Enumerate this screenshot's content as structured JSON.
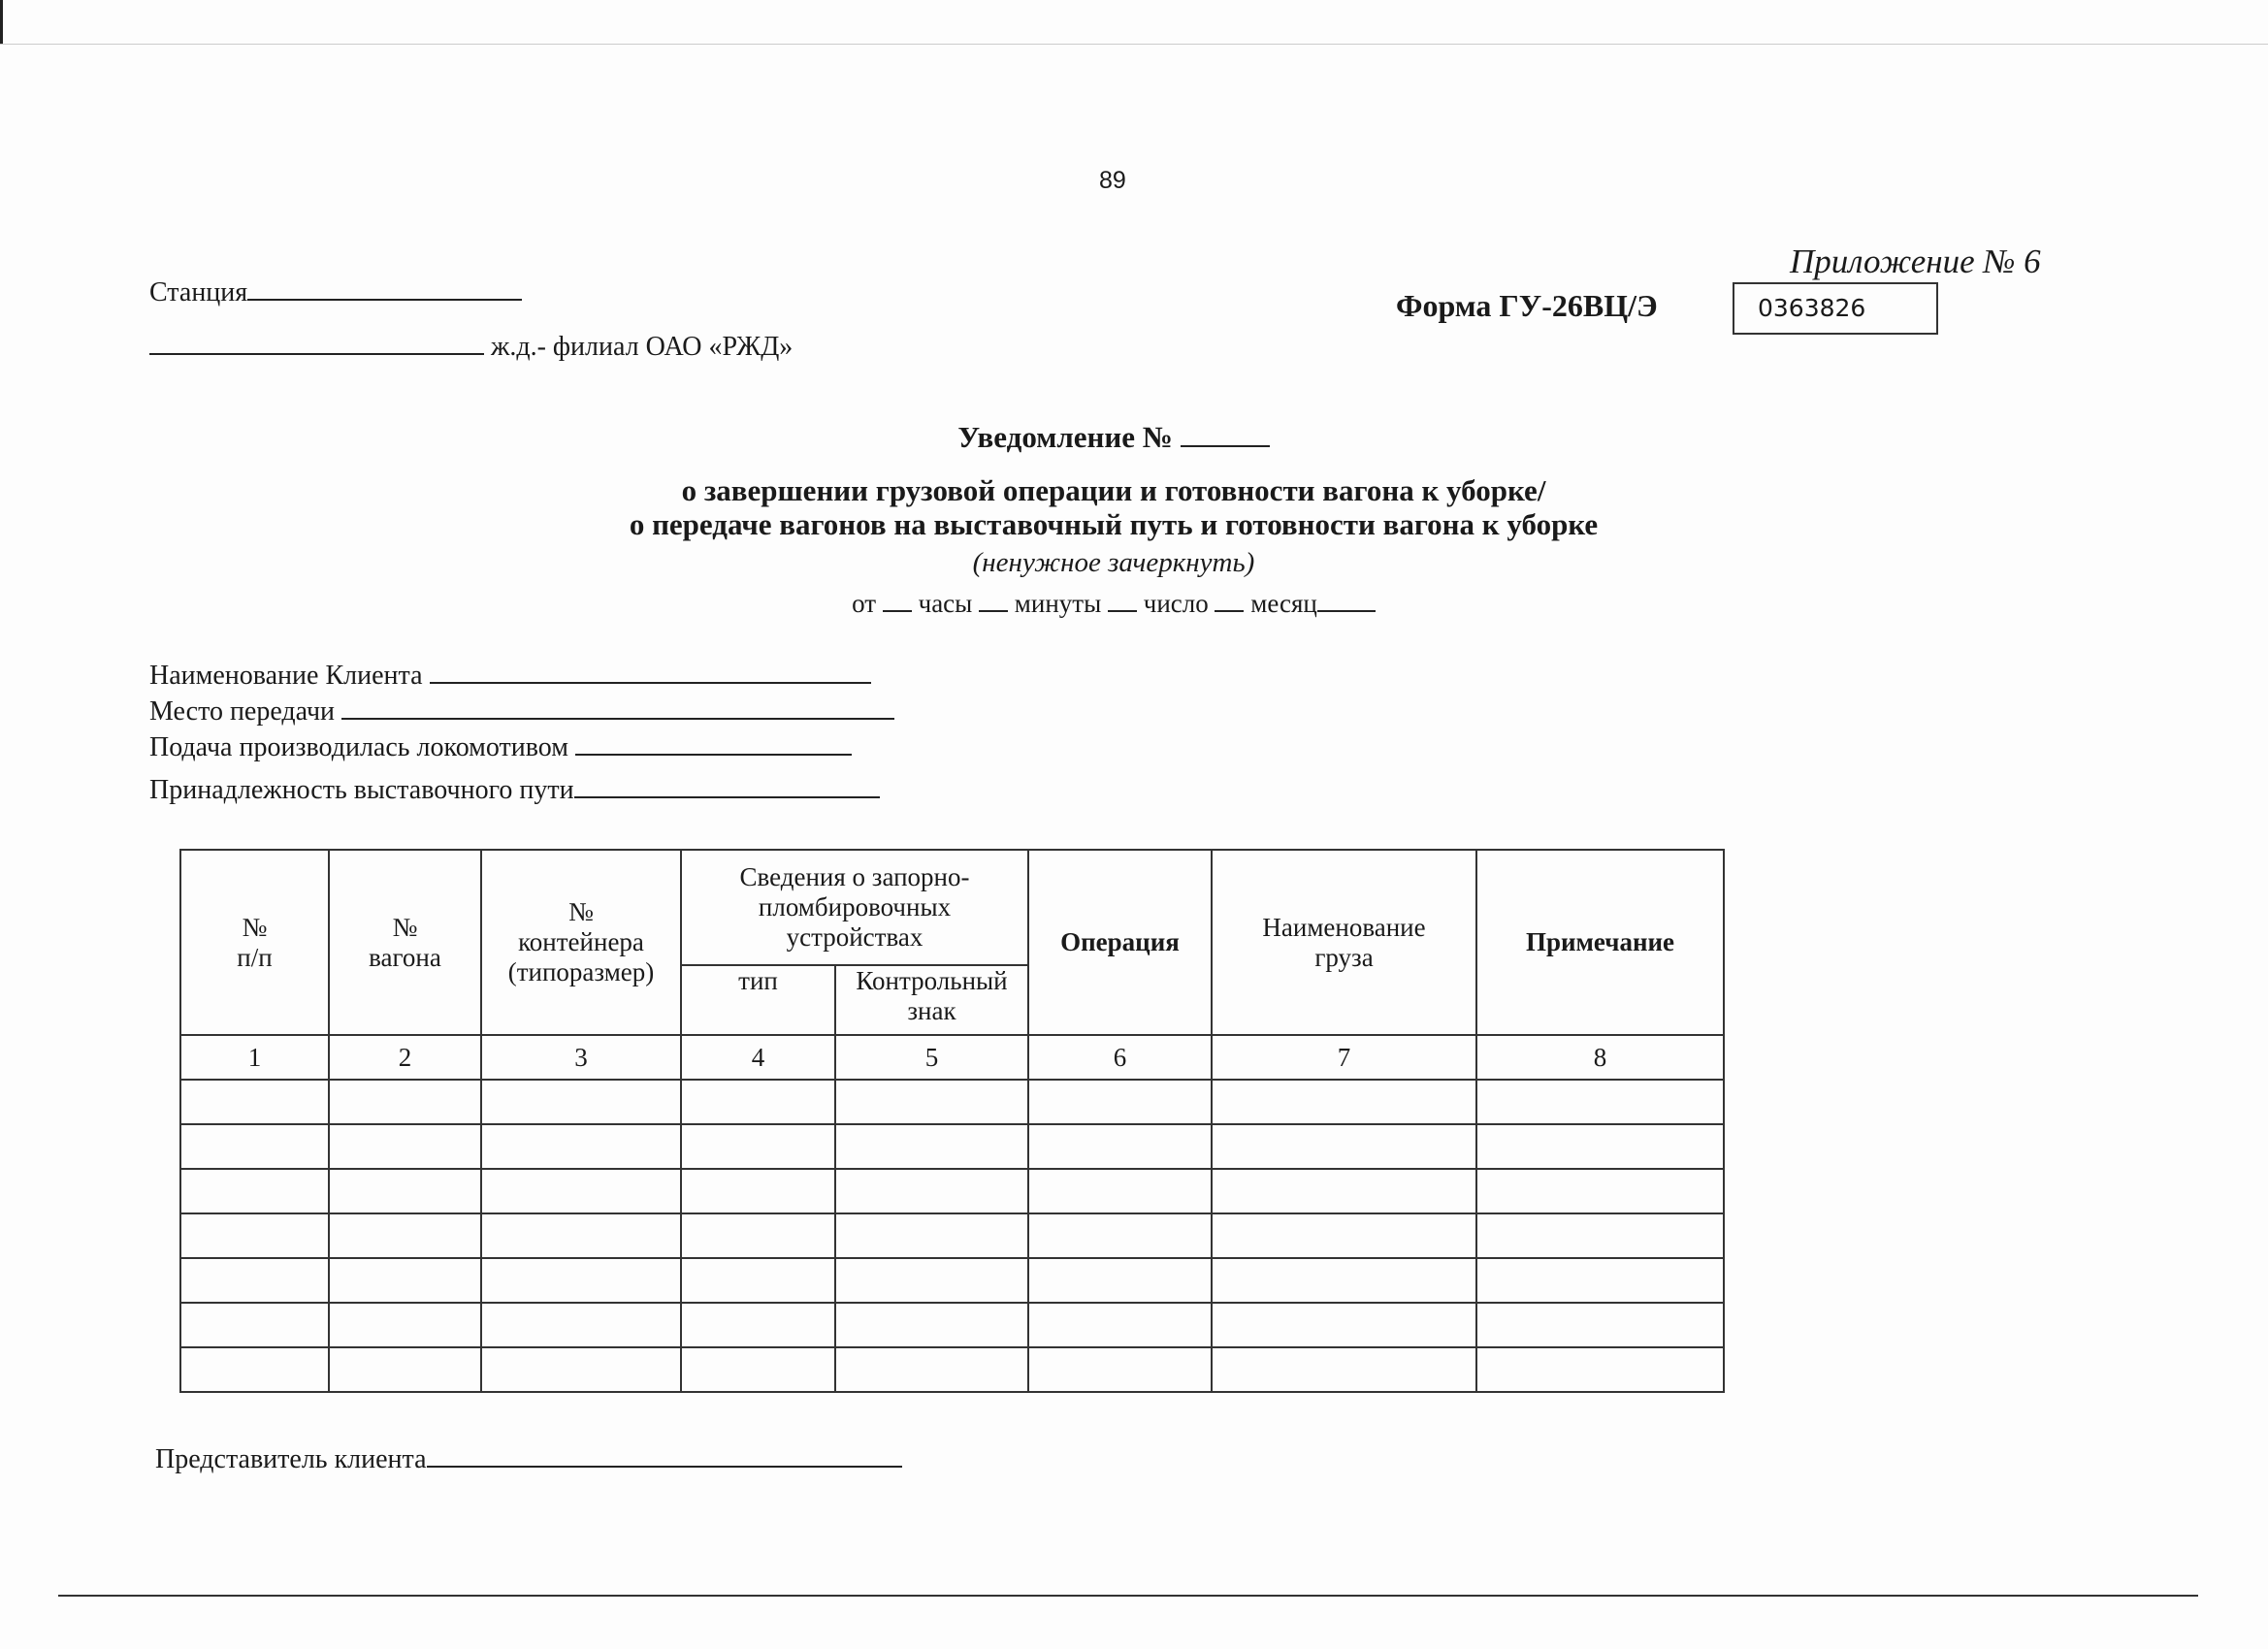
{
  "page_number": "89",
  "appendix": "Приложение № 6",
  "station_label": "Станция",
  "railway_label": "ж.д.- филиал ОАО «РЖД»",
  "form_label": "Форма ГУ-26ВЦ/Э",
  "form_number": "0363826",
  "title": {
    "line1": "Уведомление №",
    "line2": "о завершении грузовой операции и готовности вагона к уборке/",
    "line3": "о передаче вагонов на выставочный путь и готовности вагона к уборке",
    "note": "(ненужное зачеркнуть)",
    "from": "от",
    "hours": "часы",
    "minutes": "минуты",
    "day": "число",
    "month": "месяц"
  },
  "fields": [
    "Наименование  Клиента",
    "Место передачи",
    "Подача производилась локомотивом",
    "Принадлежность выставочного пути"
  ],
  "table": {
    "headers": {
      "num": "№\nп/п",
      "wagon": "№\nвагона",
      "container": "№\nконтейнера\n(типоразмер)",
      "seals": "Сведения о запорно-\nпломбировочных\nустройствах",
      "seal_type": "тип",
      "seal_mark": "Контрольный\nзнак",
      "operation": "Операция",
      "cargo": "Наименование\nгруза",
      "note": "Примечание"
    },
    "column_numbers": [
      "1",
      "2",
      "3",
      "4",
      "5",
      "6",
      "7",
      "8"
    ],
    "empty_rows": 7
  },
  "representative_label": "Представитель клиента"
}
